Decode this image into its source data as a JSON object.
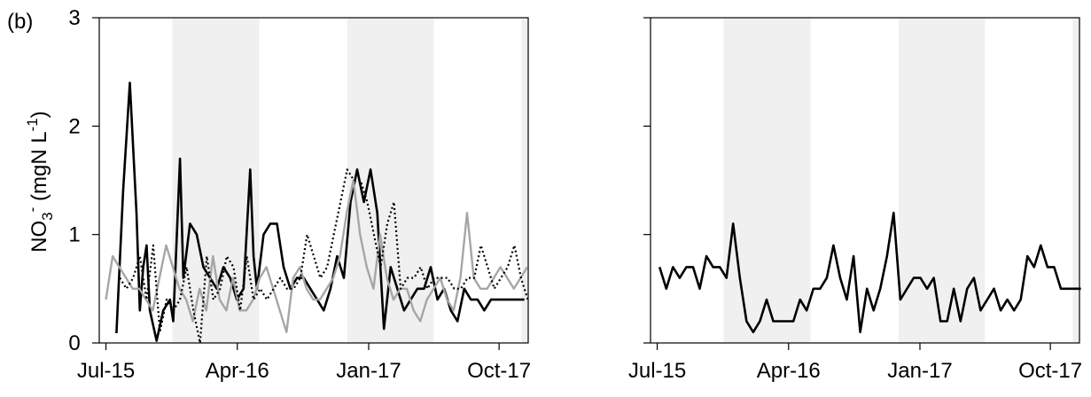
{
  "panel_label": "(b)",
  "ylabel": {
    "base": "NO",
    "sub": "3",
    "sup": "-",
    "rest": " (mgN L",
    "unit_sup": "-1",
    "close": ")"
  },
  "chart_data": [
    {
      "type": "line",
      "panel": "left",
      "x_ticks": [
        "Jul-15",
        "Apr-16",
        "Jan-17",
        "Oct-17"
      ],
      "y_ticks": [
        "0",
        "1",
        "2",
        "3"
      ],
      "xlim": [
        "2015-07-01",
        "2017-12-15"
      ],
      "ylim": [
        0,
        3
      ],
      "grid": false,
      "shaded_periods": [
        [
          "2015-12-01",
          "2016-05-31"
        ],
        [
          "2016-12-01",
          "2017-05-31"
        ],
        [
          "2017-12-01",
          "2017-12-15"
        ]
      ],
      "series": [
        {
          "color": "#000000",
          "style": "solid",
          "x": [
            "2015-08-06",
            "2015-08-20",
            "2015-09-03",
            "2015-09-17",
            "2015-09-24",
            "2015-10-01",
            "2015-10-08",
            "2015-10-15",
            "2015-10-29",
            "2015-11-12",
            "2015-11-26",
            "2015-12-03",
            "2015-12-17",
            "2015-12-24",
            "2016-01-07",
            "2016-01-21",
            "2016-02-04",
            "2016-02-18",
            "2016-03-03",
            "2016-03-17",
            "2016-03-31",
            "2016-04-14",
            "2016-04-28",
            "2016-05-12",
            "2016-05-19",
            "2016-05-26",
            "2016-06-09",
            "2016-06-23",
            "2016-07-07",
            "2016-07-21",
            "2016-08-04",
            "2016-08-18",
            "2016-09-01",
            "2016-09-15",
            "2016-09-29",
            "2016-10-13",
            "2016-10-27",
            "2016-11-10",
            "2016-11-24",
            "2016-12-08",
            "2016-12-22",
            "2017-01-05",
            "2017-01-19",
            "2017-02-02",
            "2017-02-16",
            "2017-03-02",
            "2017-03-16",
            "2017-03-30",
            "2017-04-13",
            "2017-04-27",
            "2017-05-11",
            "2017-05-25",
            "2017-06-08",
            "2017-06-22",
            "2017-07-06",
            "2017-07-20",
            "2017-08-03",
            "2017-08-17",
            "2017-08-31",
            "2017-09-14",
            "2017-09-28",
            "2017-10-12",
            "2017-10-26",
            "2017-11-09",
            "2017-11-23",
            "2017-12-07"
          ],
          "y": [
            0.09,
            1.4,
            2.4,
            1.2,
            0.3,
            0.7,
            0.9,
            0.3,
            0.02,
            0.3,
            0.4,
            0.2,
            1.7,
            0.6,
            1.1,
            1.0,
            0.7,
            0.6,
            0.5,
            0.7,
            0.6,
            0.4,
            0.5,
            1.6,
            0.8,
            0.5,
            1.0,
            1.1,
            1.1,
            0.7,
            0.5,
            0.6,
            0.6,
            0.5,
            0.4,
            0.3,
            0.5,
            0.8,
            0.6,
            1.3,
            1.6,
            1.3,
            1.6,
            1.2,
            0.13,
            0.7,
            0.5,
            0.3,
            0.4,
            0.5,
            0.5,
            0.7,
            0.4,
            0.5,
            0.3,
            0.2,
            0.5,
            0.4,
            0.4,
            0.3,
            0.4,
            0.4,
            0.4,
            0.4,
            0.4,
            0.4
          ]
        },
        {
          "color": "#a6a6a6",
          "style": "solid",
          "x": [
            "2015-07-15",
            "2015-07-29",
            "2015-08-12",
            "2015-08-26",
            "2015-09-09",
            "2015-09-23",
            "2015-10-07",
            "2015-10-21",
            "2015-11-04",
            "2015-11-18",
            "2015-12-02",
            "2015-12-16",
            "2015-12-30",
            "2016-01-13",
            "2016-01-27",
            "2016-02-10",
            "2016-02-24",
            "2016-03-09",
            "2016-03-23",
            "2016-04-06",
            "2016-04-20",
            "2016-05-04",
            "2016-05-18",
            "2016-06-01",
            "2016-06-15",
            "2016-06-29",
            "2016-07-13",
            "2016-07-27",
            "2016-08-10",
            "2016-08-24",
            "2016-09-07",
            "2016-09-21",
            "2016-10-05",
            "2016-10-19",
            "2016-11-02",
            "2016-11-16",
            "2016-11-30",
            "2016-12-14",
            "2016-12-28",
            "2017-01-11",
            "2017-01-25",
            "2017-02-08",
            "2017-02-22",
            "2017-03-08",
            "2017-03-22",
            "2017-04-05",
            "2017-04-19",
            "2017-05-03",
            "2017-05-17",
            "2017-05-31",
            "2017-06-14",
            "2017-06-28",
            "2017-07-12",
            "2017-07-26",
            "2017-08-09",
            "2017-08-23",
            "2017-09-06",
            "2017-09-20",
            "2017-10-04",
            "2017-10-18",
            "2017-11-01",
            "2017-11-15",
            "2017-11-29",
            "2017-12-13"
          ],
          "y": [
            0.4,
            0.8,
            0.7,
            0.6,
            0.5,
            0.5,
            0.4,
            0.3,
            0.6,
            0.9,
            0.7,
            0.5,
            0.4,
            0.2,
            0.5,
            0.3,
            0.8,
            0.4,
            0.3,
            0.6,
            0.3,
            0.3,
            0.4,
            0.6,
            0.7,
            0.5,
            0.3,
            0.1,
            0.6,
            0.7,
            0.5,
            0.4,
            0.4,
            0.5,
            0.6,
            0.8,
            1.2,
            1.5,
            1.0,
            0.7,
            0.5,
            1.0,
            0.6,
            0.4,
            0.5,
            0.5,
            0.3,
            0.2,
            0.4,
            0.5,
            0.6,
            0.4,
            0.3,
            0.6,
            1.2,
            0.6,
            0.5,
            0.5,
            0.6,
            0.7,
            0.6,
            0.5,
            0.6,
            0.7
          ]
        },
        {
          "color": "#000000",
          "style": "dotted",
          "x": [
            "2015-08-13",
            "2015-08-27",
            "2015-09-10",
            "2015-09-24",
            "2015-10-08",
            "2015-10-22",
            "2015-11-05",
            "2015-11-19",
            "2015-12-03",
            "2015-12-17",
            "2015-12-31",
            "2016-01-14",
            "2016-01-28",
            "2016-02-11",
            "2016-02-25",
            "2016-03-10",
            "2016-03-24",
            "2016-04-07",
            "2016-04-21",
            "2016-05-05",
            "2016-05-19",
            "2016-06-02",
            "2016-06-16",
            "2016-06-30",
            "2016-07-14",
            "2016-07-28",
            "2016-08-11",
            "2016-08-25",
            "2016-09-08",
            "2016-09-22",
            "2016-10-06",
            "2016-10-20",
            "2016-11-03",
            "2016-11-17",
            "2016-12-01",
            "2016-12-15",
            "2016-12-29",
            "2017-01-12",
            "2017-01-26",
            "2017-02-09",
            "2017-02-23",
            "2017-03-09",
            "2017-03-23",
            "2017-04-06",
            "2017-04-20",
            "2017-05-04",
            "2017-05-18",
            "2017-06-01",
            "2017-06-15",
            "2017-06-29",
            "2017-07-13",
            "2017-07-27",
            "2017-08-10",
            "2017-08-24",
            "2017-09-07",
            "2017-09-21",
            "2017-10-05",
            "2017-10-19",
            "2017-11-02",
            "2017-11-16",
            "2017-11-30",
            "2017-12-14"
          ],
          "y": [
            0.6,
            0.5,
            0.6,
            0.8,
            0.4,
            0.9,
            0.1,
            0.4,
            0.3,
            0.4,
            0.7,
            0.3,
            0.0,
            0.8,
            0.4,
            0.5,
            0.8,
            0.7,
            0.3,
            0.8,
            0.4,
            0.5,
            0.4,
            0.5,
            0.6,
            0.5,
            0.5,
            0.6,
            1.0,
            0.8,
            0.6,
            0.7,
            1.0,
            1.3,
            1.6,
            1.5,
            1.5,
            1.3,
            1.0,
            0.7,
            1.1,
            1.3,
            0.5,
            0.6,
            0.6,
            0.7,
            0.5,
            0.6,
            0.6,
            0.6,
            0.5,
            0.5,
            0.6,
            0.6,
            0.9,
            0.7,
            0.5,
            0.6,
            0.7,
            0.9,
            0.6,
            0.4
          ]
        }
      ]
    },
    {
      "type": "line",
      "panel": "right",
      "x_ticks": [
        "Jul-15",
        "Apr-16",
        "Jan-17",
        "Oct-17"
      ],
      "xlim": [
        "2015-07-01",
        "2017-12-15"
      ],
      "ylim": [
        0,
        3
      ],
      "grid": false,
      "shaded_periods": [
        [
          "2015-12-01",
          "2016-05-31"
        ],
        [
          "2016-12-01",
          "2017-05-31"
        ],
        [
          "2017-12-01",
          "2017-12-15"
        ]
      ],
      "series": [
        {
          "color": "#000000",
          "style": "solid",
          "x": [
            "2015-07-20",
            "2015-08-03",
            "2015-08-17",
            "2015-08-31",
            "2015-09-14",
            "2015-09-28",
            "2015-10-12",
            "2015-10-26",
            "2015-11-09",
            "2015-11-23",
            "2015-12-07",
            "2015-12-21",
            "2016-01-04",
            "2016-01-18",
            "2016-02-01",
            "2016-02-15",
            "2016-02-29",
            "2016-03-14",
            "2016-03-28",
            "2016-04-11",
            "2016-04-25",
            "2016-05-09",
            "2016-05-23",
            "2016-06-06",
            "2016-06-20",
            "2016-07-04",
            "2016-07-18",
            "2016-08-01",
            "2016-08-15",
            "2016-08-29",
            "2016-09-12",
            "2016-09-26",
            "2016-10-10",
            "2016-10-24",
            "2016-11-07",
            "2016-11-21",
            "2016-12-05",
            "2016-12-19",
            "2017-01-02",
            "2017-01-16",
            "2017-01-30",
            "2017-02-13",
            "2017-02-27",
            "2017-03-13",
            "2017-03-27",
            "2017-04-10",
            "2017-04-24",
            "2017-05-08",
            "2017-05-22",
            "2017-06-05",
            "2017-06-19",
            "2017-07-03",
            "2017-07-17",
            "2017-07-31",
            "2017-08-14",
            "2017-08-28",
            "2017-09-11",
            "2017-09-25",
            "2017-10-09",
            "2017-10-23",
            "2017-11-06",
            "2017-11-20",
            "2017-12-04",
            "2017-12-18"
          ],
          "y": [
            0.7,
            0.5,
            0.7,
            0.6,
            0.7,
            0.7,
            0.5,
            0.8,
            0.7,
            0.7,
            0.6,
            1.1,
            0.6,
            0.2,
            0.1,
            0.2,
            0.4,
            0.2,
            0.2,
            0.2,
            0.2,
            0.4,
            0.3,
            0.5,
            0.5,
            0.6,
            0.9,
            0.6,
            0.4,
            0.8,
            0.1,
            0.5,
            0.3,
            0.5,
            0.8,
            1.2,
            0.4,
            0.5,
            0.6,
            0.6,
            0.5,
            0.6,
            0.2,
            0.2,
            0.5,
            0.2,
            0.5,
            0.6,
            0.3,
            0.4,
            0.5,
            0.3,
            0.4,
            0.3,
            0.4,
            0.8,
            0.7,
            0.9,
            0.7,
            0.7,
            0.5,
            0.5,
            0.5,
            0.5
          ]
        }
      ]
    }
  ]
}
